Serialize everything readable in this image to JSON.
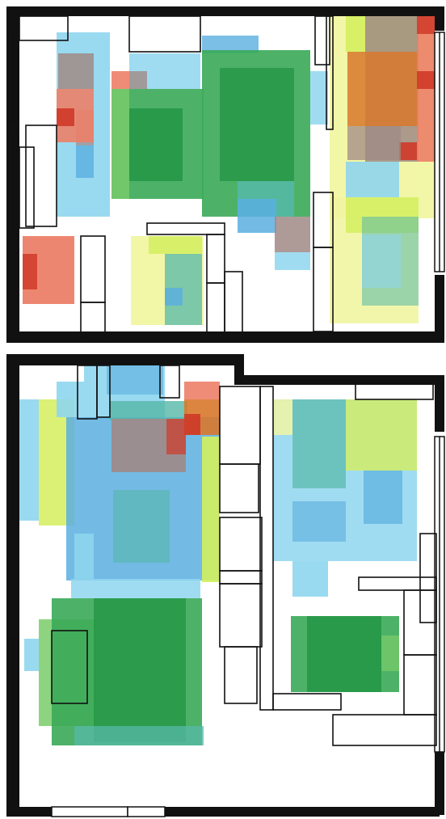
{
  "title": "",
  "palette": {
    "sky": "#8fd6ee",
    "blue": "#5aaee0",
    "teal": "#55b8a8",
    "green": "#3aaa58",
    "deep_green": "#1e9140",
    "lime": "#d4ef5e",
    "pale_yellow": "#f1f5a2",
    "salmon": "#ec8068",
    "red": "#cf3a28",
    "orange": "#d8782c",
    "mauve": "#a08a86",
    "wall": "#111111",
    "line": "#111111"
  },
  "plans": [
    {
      "id": "upper-floor",
      "heat_zones": [
        {
          "id": "left-wardrobe-zone",
          "level": "medium",
          "tone": "sky"
        },
        {
          "id": "left-cabinet-hotspot",
          "level": "very-high",
          "tone": "salmon"
        },
        {
          "id": "central-living-zone",
          "level": "high",
          "tone": "green"
        },
        {
          "id": "right-kitchen-zone",
          "level": "high",
          "tone": "orange"
        },
        {
          "id": "right-corridor-zone",
          "level": "low",
          "tone": "lime"
        },
        {
          "id": "desk-zone",
          "level": "low",
          "tone": "pale_yellow"
        },
        {
          "id": "bottom-left-hotspot",
          "level": "very-high",
          "tone": "salmon"
        }
      ]
    },
    {
      "id": "lower-floor",
      "heat_zones": [
        {
          "id": "top-left-room-zone",
          "level": "medium",
          "tone": "blue"
        },
        {
          "id": "top-left-hotspot",
          "level": "very-high",
          "tone": "red"
        },
        {
          "id": "dining-zone",
          "level": "high",
          "tone": "deep_green"
        },
        {
          "id": "right-room-zone",
          "level": "medium",
          "tone": "teal"
        },
        {
          "id": "right-bed-zone",
          "level": "high",
          "tone": "deep_green"
        }
      ]
    }
  ]
}
